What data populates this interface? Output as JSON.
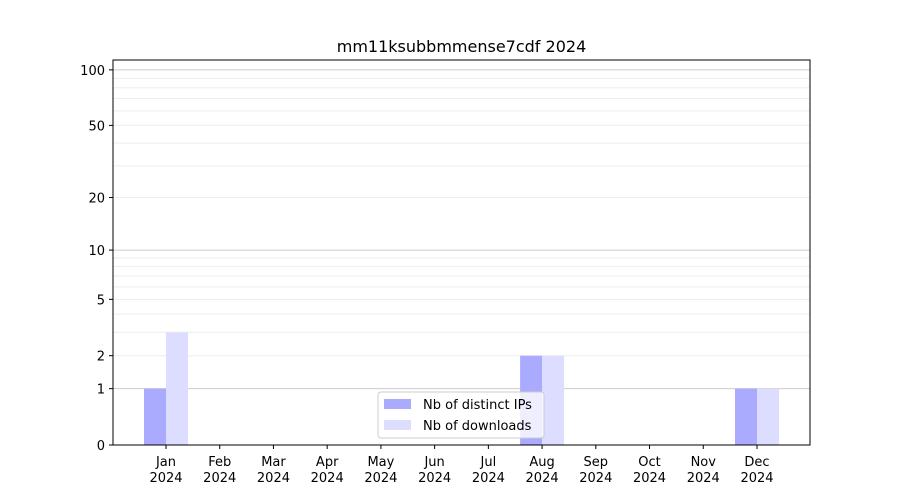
{
  "chart_data": {
    "type": "bar",
    "title": "mm11ksubbmmense7cdf 2024",
    "xlabel": "",
    "ylabel": "",
    "yscale": "symlog (log10(1+y))",
    "ylim": [
      0,
      113
    ],
    "yticks": [
      0,
      1,
      2,
      5,
      10,
      20,
      50,
      100
    ],
    "categories": [
      "Jan\n2024",
      "Feb\n2024",
      "Mar\n2024",
      "Apr\n2024",
      "May\n2024",
      "Jun\n2024",
      "Jul\n2024",
      "Aug\n2024",
      "Sep\n2024",
      "Oct\n2024",
      "Nov\n2024",
      "Dec\n2024"
    ],
    "series": [
      {
        "name": "Nb of distinct IPs",
        "color": "#aaaaff",
        "values": [
          1,
          0,
          0,
          0,
          0,
          0,
          0,
          2,
          0,
          0,
          0,
          1
        ]
      },
      {
        "name": "Nb of downloads",
        "color": "#ddddff",
        "values": [
          3,
          0,
          0,
          0,
          0,
          0,
          0,
          2,
          0,
          0,
          0,
          1
        ]
      }
    ],
    "grid": true,
    "legend": "lower center"
  }
}
